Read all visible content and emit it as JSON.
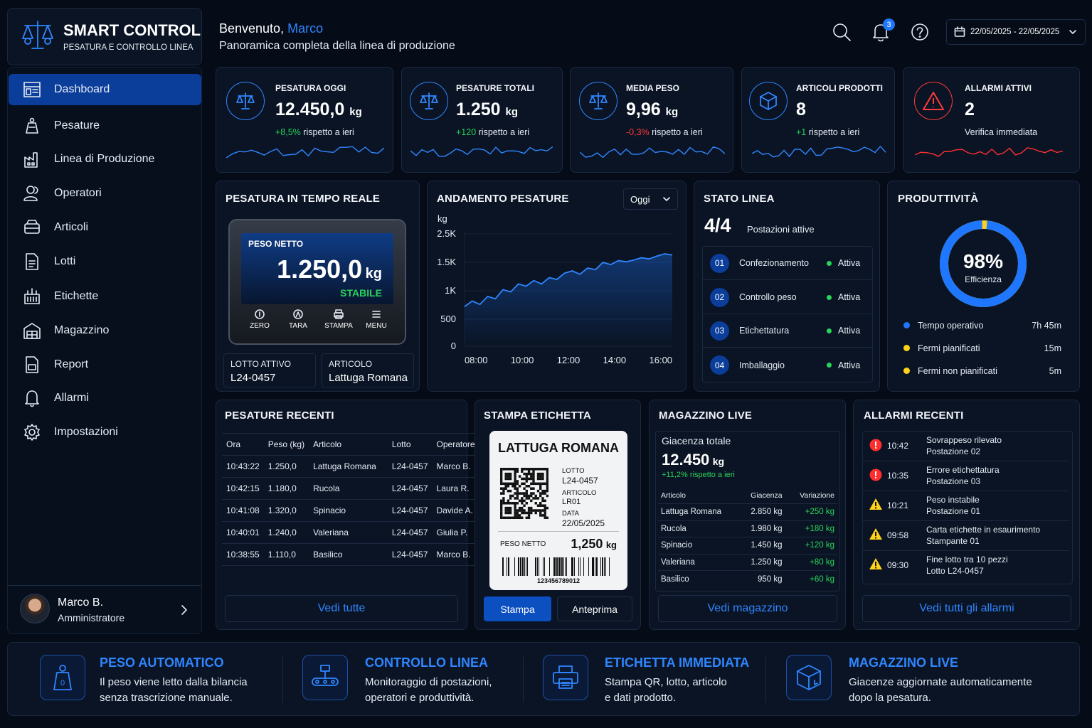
{
  "brand": {
    "title": "SMART CONTROL",
    "subtitle": "PESATURA E CONTROLLO LINEA"
  },
  "nav": [
    {
      "label": "Dashboard",
      "icon": "dashboard-icon",
      "active": true
    },
    {
      "label": "Pesature",
      "icon": "scale-icon"
    },
    {
      "label": "Linea di Produzione",
      "icon": "factory-icon"
    },
    {
      "label": "Operatori",
      "icon": "users-icon"
    },
    {
      "label": "Articoli",
      "icon": "box-icon"
    },
    {
      "label": "Lotti",
      "icon": "document-icon"
    },
    {
      "label": "Etichette",
      "icon": "label-icon"
    },
    {
      "label": "Magazzino",
      "icon": "warehouse-icon"
    },
    {
      "label": "Report",
      "icon": "report-icon"
    },
    {
      "label": "Allarmi",
      "icon": "bell-icon"
    },
    {
      "label": "Impostazioni",
      "icon": "gear-icon"
    }
  ],
  "user": {
    "name": "Marco B.",
    "role": "Amministratore"
  },
  "header": {
    "greeting": "Benvenuto,",
    "username": "Marco",
    "subtitle": "Panoramica completa della linea di produzione",
    "notifications": "3",
    "date_range": "22/05/2025 - 22/05/2025"
  },
  "kpis": [
    {
      "title": "PESATURA OGGI",
      "value": "12.450,0",
      "unit": "kg",
      "delta": "+8,5%",
      "delta_text": "rispetto a ieri",
      "trend": "up"
    },
    {
      "title": "PESATURE TOTALI",
      "value": "1.250",
      "unit": "kg",
      "delta": "+120",
      "delta_text": "rispetto a ieri",
      "trend": "up"
    },
    {
      "title": "MEDIA PESO",
      "value": "9,96",
      "unit": "kg",
      "delta": "-0,3%",
      "delta_text": "rispetto a ieri",
      "trend": "down"
    },
    {
      "title": "ARTICOLI PRODOTTI",
      "value": "8",
      "unit": "",
      "delta": "+1",
      "delta_text": "rispetto a ieri",
      "trend": "up"
    },
    {
      "title": "ALLARMI ATTIVI",
      "value": "2",
      "unit": "",
      "delta": "",
      "delta_text": "Verifica immediata",
      "trend": "alert"
    }
  ],
  "realtime": {
    "title": "PESATURA IN TEMPO REALE",
    "label": "PESO NETTO",
    "value": "1.250,0",
    "unit": "kg",
    "status": "STABILE",
    "buttons": [
      "ZERO",
      "TARA",
      "STAMPA",
      "MENU"
    ],
    "lot_label": "LOTTO ATTIVO",
    "lot_value": "L24-0457",
    "article_label": "ARTICOLO",
    "article_value": "Lattuga Romana"
  },
  "trend": {
    "title": "ANDAMENTO PESATURE",
    "period": "Oggi",
    "unit": "kg",
    "yticks": [
      "2.5K",
      "1.5K",
      "1K",
      "500",
      "0"
    ],
    "xticks": [
      "08:00",
      "10:00",
      "12:00",
      "14:00",
      "16:00"
    ]
  },
  "chart_data": {
    "type": "area",
    "title": "ANDAMENTO PESATURE",
    "ylabel": "kg",
    "x": [
      "07:30",
      "07:50",
      "08:10",
      "08:30",
      "08:50",
      "09:10",
      "09:30",
      "09:50",
      "10:10",
      "10:30",
      "10:50",
      "11:10",
      "11:30",
      "11:50",
      "12:10",
      "12:30",
      "12:50",
      "13:10",
      "13:30",
      "13:50",
      "14:10",
      "14:30",
      "14:50",
      "15:10",
      "15:30",
      "15:50",
      "16:10",
      "16:30"
    ],
    "values": [
      720,
      820,
      760,
      900,
      860,
      1020,
      980,
      1120,
      1080,
      1180,
      1120,
      1230,
      1200,
      1310,
      1350,
      1290,
      1400,
      1370,
      1500,
      1460,
      1560,
      1520,
      1580,
      1660,
      1620,
      1720,
      1800,
      1760
    ],
    "ytick_values": [
      0,
      500,
      1000,
      1500,
      2500
    ],
    "ylim": [
      0,
      2500
    ]
  },
  "line_status": {
    "title": "STATO LINEA",
    "count": "4/4",
    "count_label": "Postazioni attive",
    "stations": [
      {
        "num": "01",
        "name": "Confezionamento",
        "status": "Attiva"
      },
      {
        "num": "02",
        "name": "Controllo peso",
        "status": "Attiva"
      },
      {
        "num": "03",
        "name": "Etichettatura",
        "status": "Attiva"
      },
      {
        "num": "04",
        "name": "Imballaggio",
        "status": "Attiva"
      }
    ]
  },
  "productivity": {
    "title": "PRODUTTIVITÀ",
    "value": "98%",
    "value_fraction": 0.98,
    "label": "Efficienza",
    "legend": [
      {
        "label": "Tempo operativo",
        "value": "7h 45m",
        "color": "#1f77ff"
      },
      {
        "label": "Fermi pianificati",
        "value": "15m",
        "color": "#ffd21a"
      },
      {
        "label": "Fermi non pianificati",
        "value": "5m",
        "color": "#ffd21a"
      }
    ]
  },
  "recent": {
    "title": "PESATURE RECENTI",
    "headers": [
      "Ora",
      "Peso (kg)",
      "Articolo",
      "Lotto",
      "Operatore"
    ],
    "rows": [
      [
        "10:43:22",
        "1.250,0",
        "Lattuga Romana",
        "L24-0457",
        "Marco B."
      ],
      [
        "10:42:15",
        "1.180,0",
        "Rucola",
        "L24-0457",
        "Laura R."
      ],
      [
        "10:41:08",
        "1.320,0",
        "Spinacio",
        "L24-0457",
        "Davide A."
      ],
      [
        "10:40:01",
        "1.240,0",
        "Valeriana",
        "L24-0457",
        "Giulia P."
      ],
      [
        "10:38:55",
        "1.110,0",
        "Basilico",
        "L24-0457",
        "Marco B."
      ]
    ],
    "link": "Vedi tutte"
  },
  "label_print": {
    "title": "STAMPA ETICHETTA",
    "product": "LATTUGA ROMANA",
    "lot_k": "LOTTO",
    "lot_v": "L24-0457",
    "art_k": "ARTICOLO",
    "art_v": "LR01",
    "date_k": "DATA",
    "date_v": "22/05/2025",
    "net_k": "PESO NETTO",
    "net_v": "1,250",
    "net_u": "kg",
    "barcode": "123456789012",
    "print_btn": "Stampa",
    "preview_btn": "Anteprima"
  },
  "warehouse": {
    "title": "MAGAZZINO LIVE",
    "total_label": "Giacenza totale",
    "total_value": "12.450",
    "total_unit": "kg",
    "delta": "+11,2% rispetto a ieri",
    "headers": [
      "Articolo",
      "Giacenza",
      "Variazione"
    ],
    "rows": [
      [
        "Lattuga Romana",
        "2.850 kg",
        "+250 kg"
      ],
      [
        "Rucola",
        "1.980 kg",
        "+180 kg"
      ],
      [
        "Spinacio",
        "1.450 kg",
        "+120 kg"
      ],
      [
        "Valeriana",
        "1.250 kg",
        "+80 kg"
      ],
      [
        "Basilico",
        "950 kg",
        "+60 kg"
      ]
    ],
    "link": "Vedi magazzino"
  },
  "alarms": {
    "title": "ALLARMI RECENTI",
    "items": [
      {
        "time": "10:42",
        "text": "Sovrappeso rilevato",
        "sub": "Postazione 02",
        "level": "error"
      },
      {
        "time": "10:35",
        "text": "Errore etichettatura",
        "sub": "Postazione 03",
        "level": "error"
      },
      {
        "time": "10:21",
        "text": "Peso instabile",
        "sub": "Postazione 01",
        "level": "warning"
      },
      {
        "time": "09:58",
        "text": "Carta etichette in esaurimento",
        "sub": "Stampante 01",
        "level": "warning"
      },
      {
        "time": "09:30",
        "text": "Fine lotto tra 10 pezzi",
        "sub": "Lotto L24-0457",
        "level": "warning"
      }
    ],
    "link": "Vedi tutti gli allarmi"
  },
  "features": [
    {
      "title": "PESO AUTOMATICO",
      "line1": "Il peso viene letto dalla bilancia",
      "line2": "senza trascrizione manuale.",
      "icon": "weight-icon"
    },
    {
      "title": "CONTROLLO LINEA",
      "line1": "Monitoraggio di postazioni,",
      "line2": "operatori e produttività.",
      "icon": "conveyor-icon"
    },
    {
      "title": "ETICHETTA IMMEDIATA",
      "line1": "Stampa QR, lotto, articolo",
      "line2": "e dati prodotto.",
      "icon": "printer-icon"
    },
    {
      "title": "MAGAZZINO LIVE",
      "line1": "Giacenze aggiornate automaticamente",
      "line2": "dopo la pesatura.",
      "icon": "cube-icon"
    }
  ],
  "colors": {
    "accent": "#2f86ff",
    "active_nav": "#0b3d9a",
    "success": "#2bd35a",
    "danger": "#ff3b3b",
    "warning": "#ffd21a",
    "background": "#050b17"
  }
}
